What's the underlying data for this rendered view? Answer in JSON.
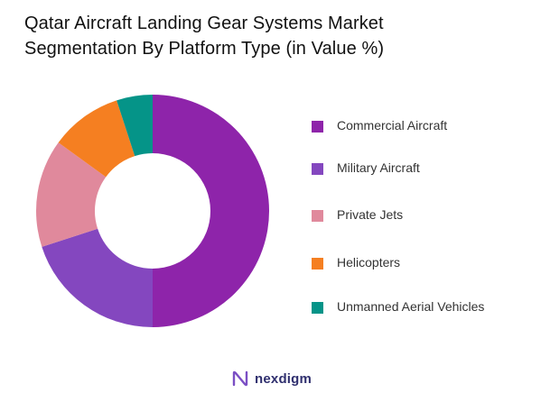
{
  "header": {
    "title_line1": "Qatar Aircraft Landing Gear Systems Market",
    "title_line2": "Segmentation By  Platform Type (in Value %)"
  },
  "brand": {
    "name": "nexdigm"
  },
  "colors": {
    "commercial": "#8E24AA",
    "military": "#8447BF",
    "private_jets": "#E0899C",
    "helicopters": "#F57F21",
    "uav": "#059488"
  },
  "chart_data": {
    "type": "pie",
    "donut": true,
    "title": "Qatar Aircraft Landing Gear Systems Market Segmentation By  Platform Type (in Value %)",
    "legend_position": "right",
    "categories": [
      "Commercial Aircraft",
      "Military Aircraft",
      "Private Jets",
      "Helicopters",
      "Unmanned Aerial Vehicles"
    ],
    "values": [
      50,
      20,
      15,
      10,
      5
    ],
    "colors": [
      "#8E24AA",
      "#8447BF",
      "#E0899C",
      "#F57F21",
      "#059488"
    ]
  }
}
